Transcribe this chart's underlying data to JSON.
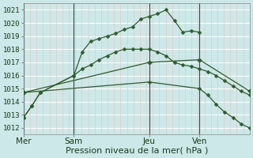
{
  "title": "",
  "xlabel": "Pression niveau de la mer( hPa )",
  "bg_color": "#cce8e8",
  "line_color": "#2d5c2d",
  "ylim": [
    1011.5,
    1021.5
  ],
  "yticks": [
    1012,
    1013,
    1014,
    1015,
    1016,
    1017,
    1018,
    1019,
    1020,
    1021
  ],
  "day_labels": [
    "Mer",
    "Sam",
    "Jeu",
    "Ven"
  ],
  "day_positions": [
    0,
    24,
    60,
    84
  ],
  "xlim": [
    0,
    108
  ],
  "series": [
    {
      "x": [
        0,
        4,
        8,
        24,
        28,
        32,
        36,
        40,
        44,
        48,
        52,
        56,
        60,
        64,
        68,
        72,
        76,
        80,
        84
      ],
      "y": [
        1012.8,
        1013.7,
        1014.7,
        1016.0,
        1017.8,
        1018.6,
        1018.8,
        1019.0,
        1019.2,
        1019.5,
        1019.7,
        1020.3,
        1020.5,
        1020.7,
        1021.0,
        1020.2,
        1019.3,
        1019.4,
        1019.3
      ]
    },
    {
      "x": [
        0,
        4,
        8,
        24,
        28,
        32,
        36,
        40,
        44,
        48,
        52,
        56,
        60,
        64,
        68,
        72,
        76,
        80,
        84,
        88,
        92,
        96,
        100,
        104,
        108
      ],
      "y": [
        1012.8,
        1013.7,
        1014.7,
        1016.0,
        1016.5,
        1016.8,
        1017.2,
        1017.5,
        1017.8,
        1018.0,
        1018.0,
        1018.0,
        1018.0,
        1017.8,
        1017.5,
        1017.0,
        1016.8,
        1016.7,
        1016.5,
        1016.3,
        1016.0,
        1015.6,
        1015.2,
        1014.8,
        1014.5
      ]
    },
    {
      "x": [
        0,
        60,
        84,
        108
      ],
      "y": [
        1014.7,
        1017.0,
        1017.2,
        1014.8
      ]
    },
    {
      "x": [
        0,
        60,
        84,
        88,
        92,
        96,
        100,
        104,
        108
      ],
      "y": [
        1014.7,
        1015.5,
        1015.0,
        1014.5,
        1013.8,
        1013.2,
        1012.8,
        1012.3,
        1012.0
      ]
    }
  ],
  "vline_positions": [
    0,
    24,
    60,
    84
  ],
  "fontsize_xlabel": 8,
  "fontsize_yticks": 6.5,
  "fontsize_xticks": 7.5
}
